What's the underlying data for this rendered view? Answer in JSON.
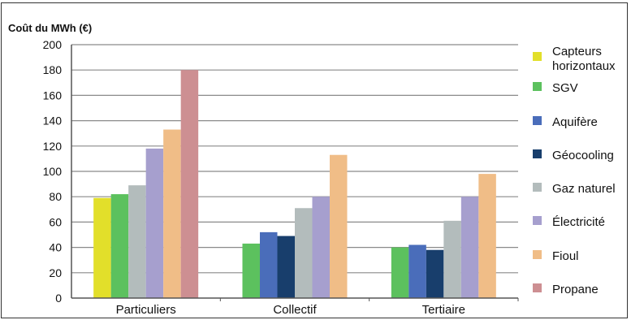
{
  "chart_data": {
    "type": "bar",
    "title": "",
    "ylabel": "Coût du MWh (€)",
    "xlabel": "",
    "ylim": [
      0,
      200
    ],
    "yticks": [
      0,
      20,
      40,
      60,
      80,
      100,
      120,
      140,
      160,
      180,
      200
    ],
    "grid": true,
    "legend_position": "right",
    "categories": [
      "Particuliers",
      "Collectif",
      "Tertiaire"
    ],
    "series": [
      {
        "name": "Capteurs horizontaux",
        "legend_lines": [
          "Capteurs",
          "horizontaux"
        ],
        "color": "#e2df2a",
        "values": [
          79,
          null,
          null
        ]
      },
      {
        "name": "SGV",
        "legend_lines": [
          "SGV"
        ],
        "color": "#5cc15e",
        "values": [
          82,
          43,
          40
        ]
      },
      {
        "name": "Aquifère",
        "legend_lines": [
          "Aquifère"
        ],
        "color": "#4a6dba",
        "values": [
          null,
          52,
          42
        ]
      },
      {
        "name": "Géocooling",
        "legend_lines": [
          "Géocooling"
        ],
        "color": "#183e6c",
        "values": [
          null,
          49,
          38
        ]
      },
      {
        "name": "Gaz naturel",
        "legend_lines": [
          "Gaz naturel"
        ],
        "color": "#b3bcbc",
        "values": [
          89,
          71,
          61
        ]
      },
      {
        "name": "Électricité",
        "legend_lines": [
          "Électricité"
        ],
        "color": "#a69fce",
        "values": [
          118,
          80,
          80
        ]
      },
      {
        "name": "Fioul",
        "legend_lines": [
          "Fioul"
        ],
        "color": "#f0bd87",
        "values": [
          133,
          113,
          98
        ]
      },
      {
        "name": "Propane",
        "legend_lines": [
          "Propane"
        ],
        "color": "#cd8f92",
        "values": [
          180,
          null,
          null
        ]
      }
    ]
  }
}
